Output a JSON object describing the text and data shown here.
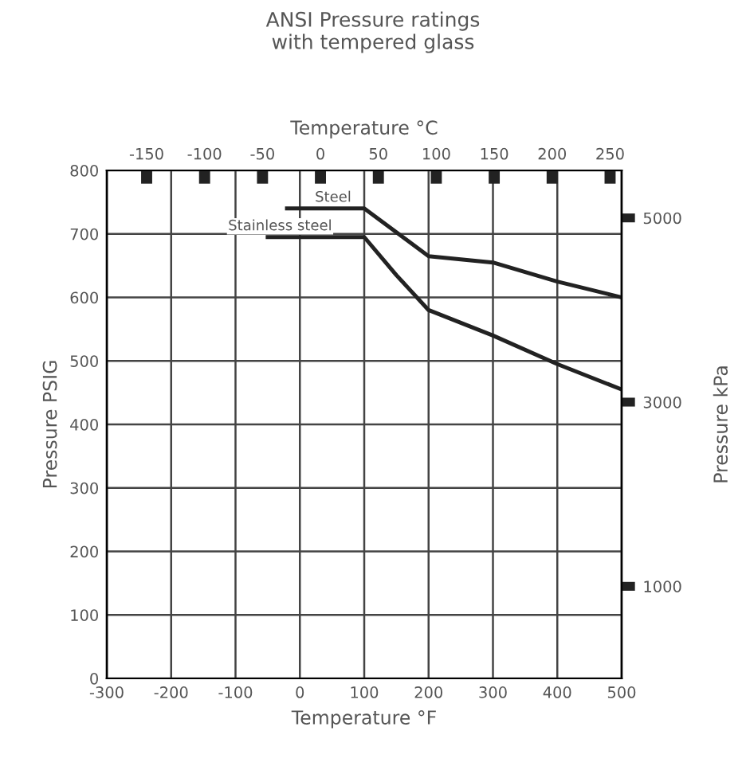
{
  "chart_data": {
    "type": "line",
    "title": "ANSI Pressure ratings\nwith tempered glass",
    "xlabel": "Temperature °F",
    "ylabel": "Pressure PSIG",
    "x2label": "Temperature °C",
    "y2label": "Pressure kPa",
    "xlim": [
      -300,
      500
    ],
    "xticks": [
      -300,
      -200,
      -100,
      0,
      100,
      200,
      300,
      400,
      500
    ],
    "ylim": [
      0,
      800
    ],
    "yticks": [
      0,
      100,
      200,
      300,
      400,
      500,
      600,
      700,
      800
    ],
    "x2lim": [
      -184.4,
      260
    ],
    "x2ticks": [
      -150,
      -100,
      -50,
      0,
      50,
      100,
      150,
      200,
      250
    ],
    "y2lim": [
      0,
      5516
    ],
    "y2ticks": [
      1000,
      3000,
      5000
    ],
    "grid": true,
    "marker": "none",
    "line_style": "solid",
    "series": [
      {
        "name": "Steel",
        "color": "#222222",
        "x": [
          -20,
          100,
          200,
          300,
          400,
          500
        ],
        "values": [
          740,
          740,
          665,
          655,
          625,
          600
        ]
      },
      {
        "name": "Stainless steel",
        "color": "#222222",
        "x": [
          -50,
          100,
          150,
          200,
          300,
          400,
          500
        ],
        "values": [
          695,
          695,
          635,
          580,
          540,
          495,
          455
        ]
      }
    ]
  }
}
